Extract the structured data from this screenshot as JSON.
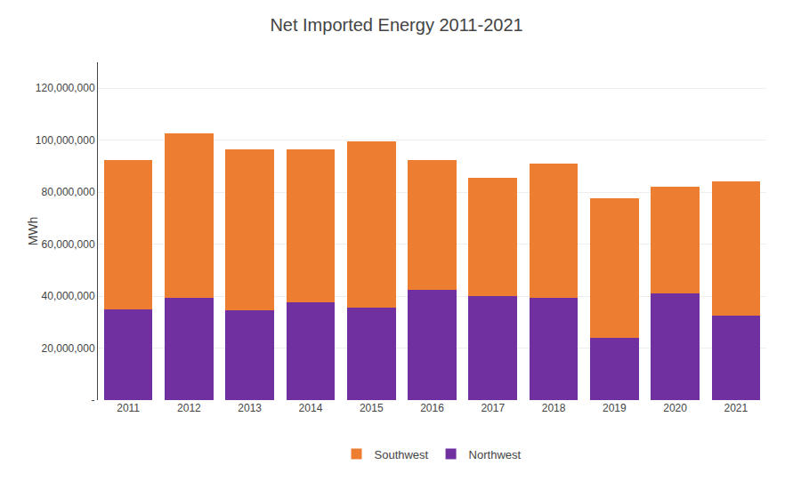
{
  "chart_data": {
    "type": "bar",
    "title": "Net Imported Energy 2011-2021",
    "ylabel": "MWh",
    "categories": [
      "2011",
      "2012",
      "2013",
      "2014",
      "2015",
      "2016",
      "2017",
      "2018",
      "2019",
      "2020",
      "2021"
    ],
    "series": [
      {
        "name": "Northwest",
        "color": "#7030A0",
        "values": [
          35000000,
          39500000,
          34500000,
          37500000,
          35500000,
          42500000,
          40000000,
          39500000,
          24000000,
          41000000,
          32500000
        ]
      },
      {
        "name": "Southwest",
        "color": "#ED7D31",
        "values": [
          57500000,
          63000000,
          62000000,
          59000000,
          64000000,
          50000000,
          45500000,
          51500000,
          53500000,
          41000000,
          51500000
        ]
      }
    ],
    "stacked": true,
    "ylim": [
      0,
      130000000
    ],
    "yticks": [
      {
        "value": 0,
        "label": "-"
      },
      {
        "value": 20000000,
        "label": "20,000,000"
      },
      {
        "value": 40000000,
        "label": "40,000,000"
      },
      {
        "value": 60000000,
        "label": "60,000,000"
      },
      {
        "value": 80000000,
        "label": "80,000,000"
      },
      {
        "value": 100000000,
        "label": "100,000,000"
      },
      {
        "value": 120000000,
        "label": "120,000,000"
      }
    ],
    "grid": true,
    "legend": "bottom"
  }
}
